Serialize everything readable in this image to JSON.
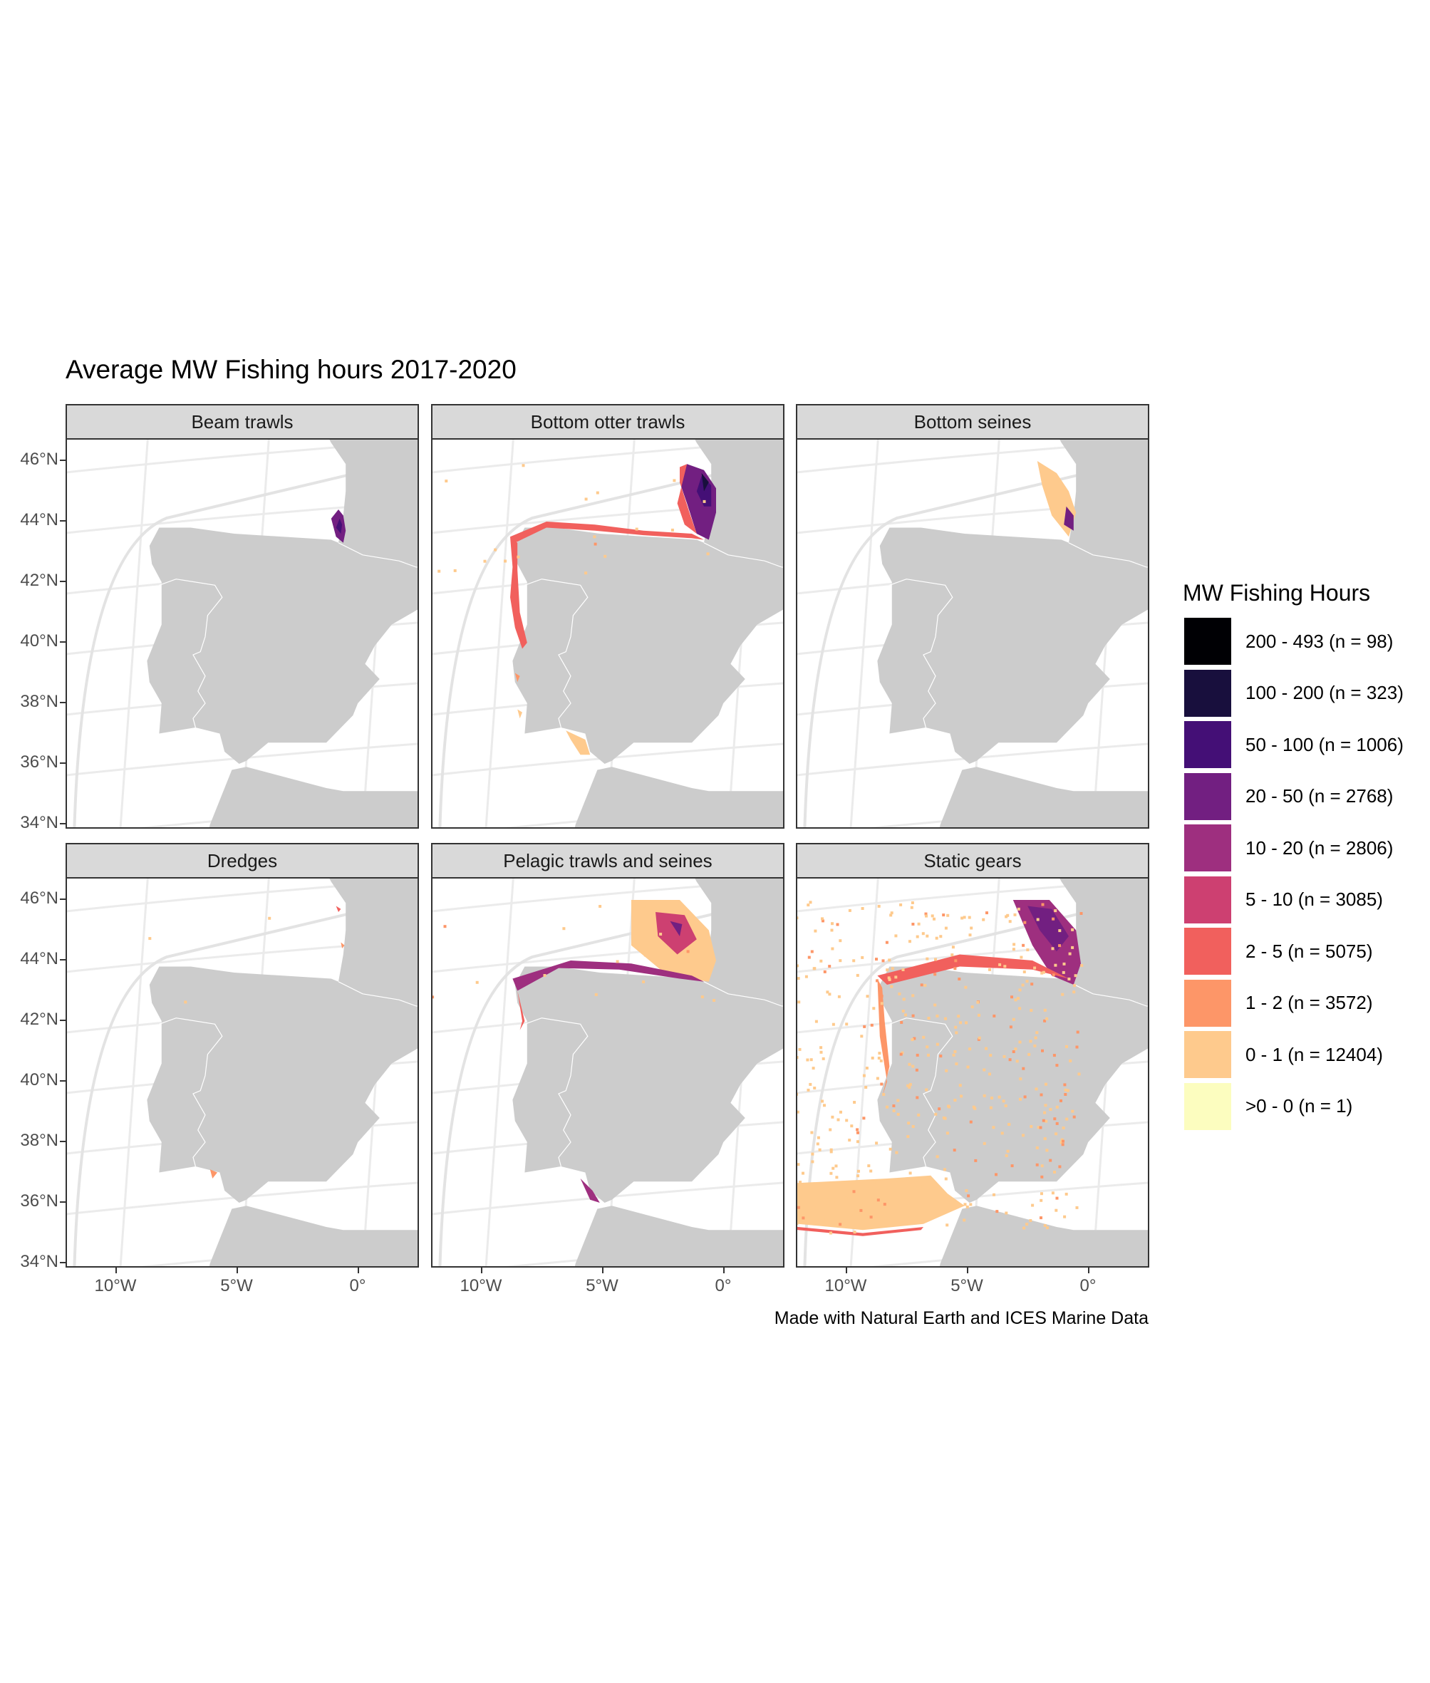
{
  "title": "Average MW Fishing hours 2017-2020",
  "caption": "Made with Natural Earth and ICES Marine Data",
  "axes": {
    "y_labels": [
      "46°N",
      "44°N",
      "42°N",
      "40°N",
      "38°N",
      "36°N",
      "34°N"
    ],
    "x_labels": [
      "10°W",
      "5°W",
      "0°"
    ]
  },
  "chart_data": {
    "type": "heatmap",
    "title": "Average MW Fishing hours 2017-2020",
    "facets": [
      "Beam trawls",
      "Bottom otter trawls",
      "Bottom seines",
      "Dredges",
      "Pelagic trawls and seines",
      "Static gears"
    ],
    "x_ticks": [
      "10°W",
      "5°W",
      "0°"
    ],
    "y_ticks": [
      "46°N",
      "44°N",
      "42°N",
      "40°N",
      "38°N",
      "36°N",
      "34°N"
    ],
    "legend_title": "MW Fishing Hours",
    "legend": [
      {
        "label": "200 - 493 (n = 98)",
        "color": "#000004",
        "min": 200,
        "max": 493,
        "n": 98
      },
      {
        "label": "100 - 200 (n = 323)",
        "color": "#180f3d",
        "min": 100,
        "max": 200,
        "n": 323
      },
      {
        "label": "50 - 100 (n = 1006)",
        "color": "#440f76",
        "min": 50,
        "max": 100,
        "n": 1006
      },
      {
        "label": "20 - 50 (n = 2768)",
        "color": "#721f81",
        "min": 20,
        "max": 50,
        "n": 2768
      },
      {
        "label": "10 - 20 (n = 2806)",
        "color": "#9e2f7f",
        "min": 10,
        "max": 20,
        "n": 2806
      },
      {
        "label": "5 - 10 (n = 3085)",
        "color": "#cd4071",
        "min": 5,
        "max": 10,
        "n": 3085
      },
      {
        "label": "2 - 5 (n = 5075)",
        "color": "#f1605d",
        "min": 2,
        "max": 5,
        "n": 5075
      },
      {
        "label": "1 - 2 (n = 3572)",
        "color": "#fd9668",
        "min": 1,
        "max": 2,
        "n": 3572
      },
      {
        "label": "0 - 1 (n = 12404)",
        "color": "#feca8d",
        "min": 0,
        "max": 1,
        "n": 12404
      },
      {
        "label": ">0 - 0 (n = 1)",
        "color": "#fcfdbf",
        "min": 0,
        "max": 0,
        "n": 1
      }
    ],
    "legend_position": "right",
    "grid": true,
    "land_color": "#cccccc"
  }
}
